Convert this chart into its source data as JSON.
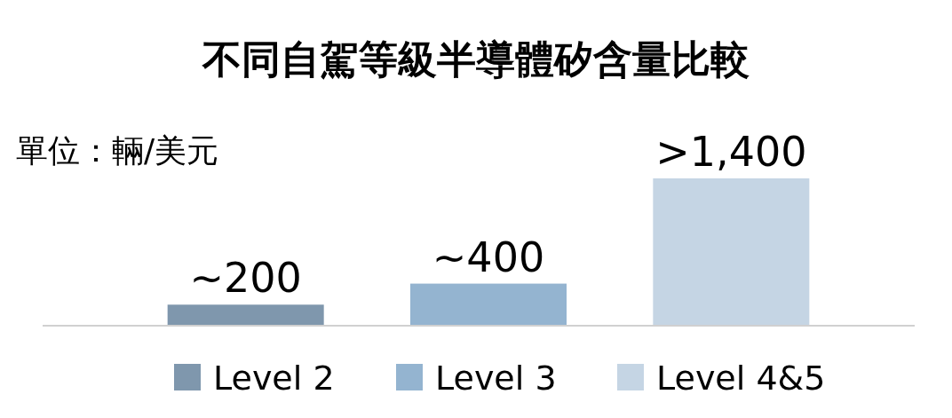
{
  "chart_data": {
    "type": "bar",
    "title": "不同自駕等級半導體矽含量比較",
    "ylabel": "單位：輛/美元",
    "categories": [
      null,
      null,
      null
    ],
    "stacked": true,
    "legend": "bottom",
    "series": [
      {
        "name": "Level 2",
        "color": "#7f97ad",
        "values": [
          200,
          null,
          null
        ],
        "value_labels": [
          "~200",
          null,
          null
        ]
      },
      {
        "name": "Level 3",
        "color": "#94b4d0",
        "values": [
          null,
          400,
          null
        ],
        "value_labels": [
          null,
          "~400",
          null
        ]
      },
      {
        "name": "Level 4&5",
        "color": "#c5d5e4",
        "values": [
          null,
          null,
          1400
        ],
        "value_labels": [
          null,
          null,
          ">1,400"
        ]
      }
    ]
  }
}
